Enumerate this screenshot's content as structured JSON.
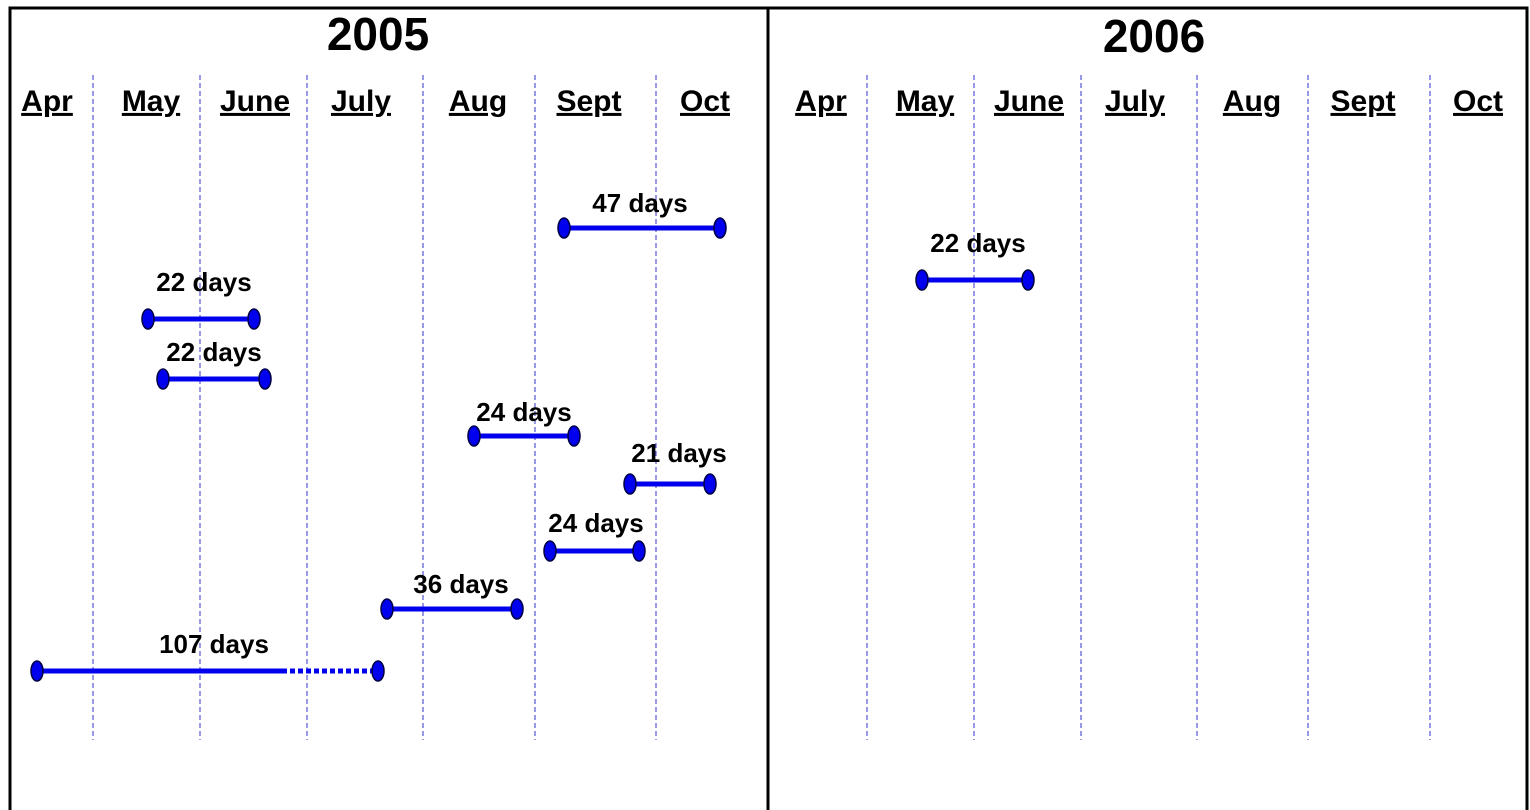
{
  "panels": [
    {
      "year": "2005",
      "months": [
        "Apr",
        "May",
        "June",
        "July",
        "Aug",
        "Sept",
        "Oct"
      ],
      "spans": [
        {
          "label": "47 days"
        },
        {
          "label": "22 days"
        },
        {
          "label": "22 days"
        },
        {
          "label": "24 days"
        },
        {
          "label": "21 days"
        },
        {
          "label": "24 days"
        },
        {
          "label": "36 days"
        },
        {
          "label": "107 days"
        }
      ]
    },
    {
      "year": "2006",
      "months": [
        "Apr",
        "May",
        "June",
        "July",
        "Aug",
        "Sept",
        "Oct"
      ],
      "spans": [
        {
          "label": "22 days"
        }
      ]
    }
  ]
}
